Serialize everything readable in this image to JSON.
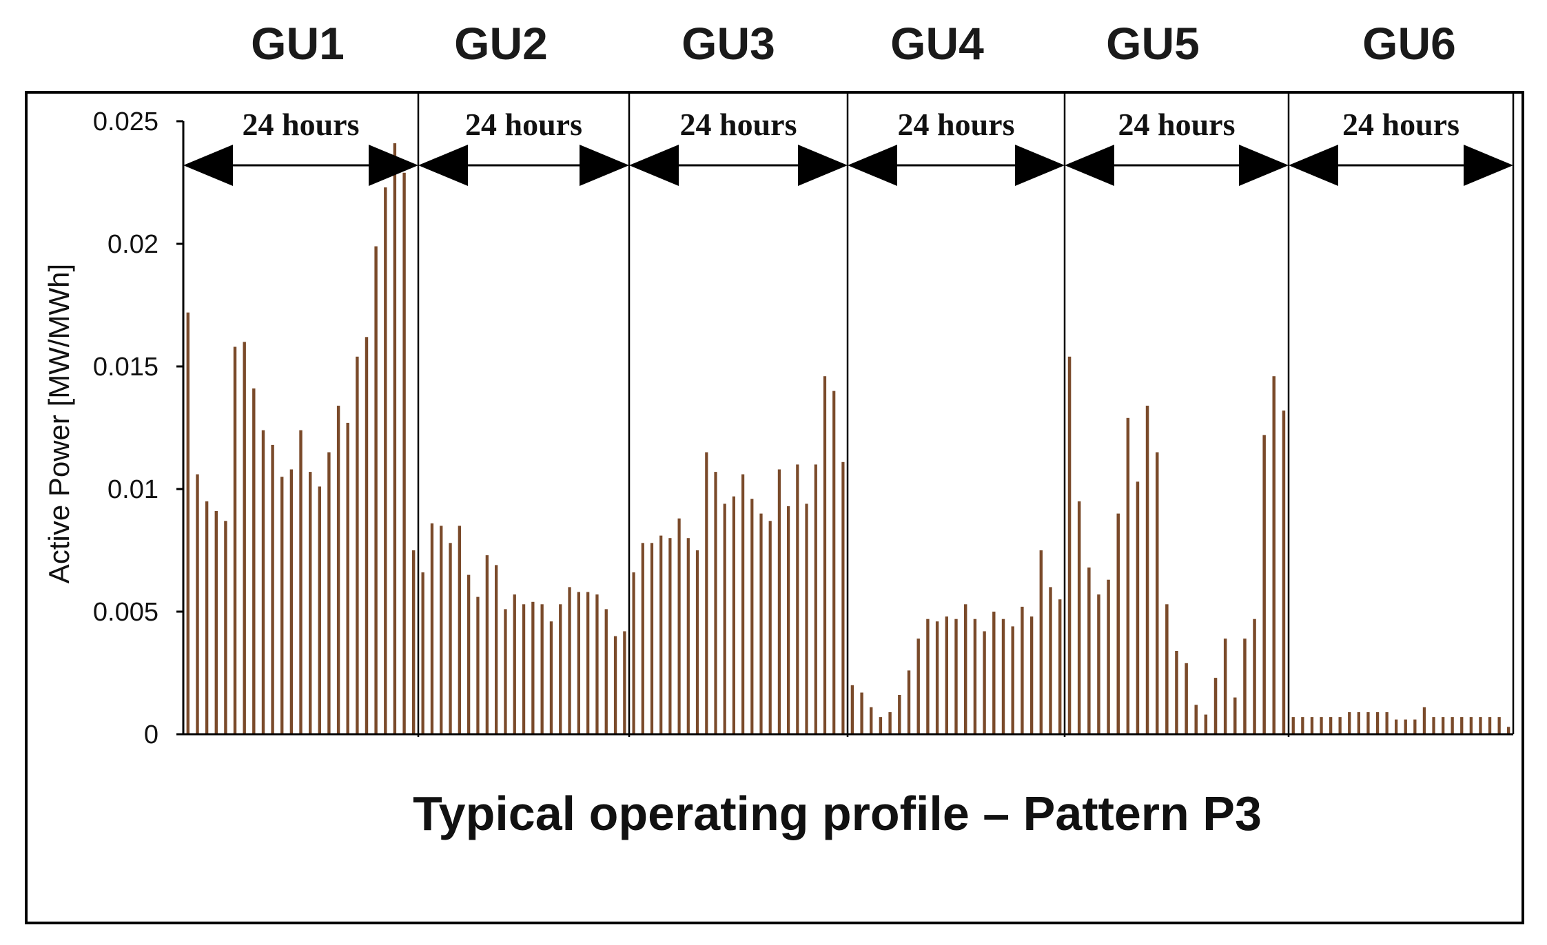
{
  "chart_data": {
    "type": "bar",
    "title": "",
    "xlabel": "Typical operating profile – Pattern P3",
    "ylabel": "Active Power  [MW/MWh]",
    "ylim": [
      0,
      0.025
    ],
    "yticks": [
      "0",
      "0.005",
      "0.01",
      "0.015",
      "0.02",
      "0.025"
    ],
    "grid": false,
    "legend": "none",
    "bar_color": "#7a4a2a",
    "segment_span_label": "24 hours",
    "segments": [
      {
        "name": "GU1",
        "span_label": "24 hours",
        "values": [
          0.0172,
          0.0106,
          0.0095,
          0.0091,
          0.0087,
          0.0158,
          0.016,
          0.0141,
          0.0124,
          0.0118,
          0.0105,
          0.0108,
          0.0124,
          0.0107,
          0.0101,
          0.0115,
          0.0134,
          0.0127,
          0.0154,
          0.0162,
          0.0199,
          0.0223,
          0.0241,
          0.0229,
          0.0075
        ]
      },
      {
        "name": "GU2",
        "span_label": "24 hours",
        "values": [
          0.0066,
          0.0086,
          0.0085,
          0.0078,
          0.0085,
          0.0065,
          0.0056,
          0.0073,
          0.0069,
          0.0051,
          0.0057,
          0.0053,
          0.0054,
          0.0053,
          0.0046,
          0.0053,
          0.006,
          0.0058,
          0.0058,
          0.0057,
          0.0051,
          0.004,
          0.0042
        ]
      },
      {
        "name": "GU3",
        "span_label": "24 hours",
        "values": [
          0.0066,
          0.0078,
          0.0078,
          0.0081,
          0.008,
          0.0088,
          0.008,
          0.0075,
          0.0115,
          0.0107,
          0.0094,
          0.0097,
          0.0106,
          0.0096,
          0.009,
          0.0087,
          0.0108,
          0.0093,
          0.011,
          0.0094,
          0.011,
          0.0146,
          0.014,
          0.0111
        ]
      },
      {
        "name": "GU4",
        "span_label": "24 hours",
        "values": [
          0.002,
          0.0017,
          0.0011,
          0.0007,
          0.0009,
          0.0016,
          0.0026,
          0.0039,
          0.0047,
          0.0046,
          0.0048,
          0.0047,
          0.0053,
          0.0047,
          0.0042,
          0.005,
          0.0047,
          0.0044,
          0.0052,
          0.0048,
          0.0075,
          0.006,
          0.0055
        ]
      },
      {
        "name": "GU5",
        "span_label": "24 hours",
        "values": [
          0.0154,
          0.0095,
          0.0068,
          0.0057,
          0.0063,
          0.009,
          0.0129,
          0.0103,
          0.0134,
          0.0115,
          0.0053,
          0.0034,
          0.0029,
          0.0012,
          0.0008,
          0.0023,
          0.0039,
          0.0015,
          0.0039,
          0.0047,
          0.0122,
          0.0146,
          0.0132
        ]
      },
      {
        "name": "GU6",
        "span_label": "24 hours",
        "values": [
          0.0007,
          0.0007,
          0.0007,
          0.0007,
          0.0007,
          0.0007,
          0.0009,
          0.0009,
          0.0009,
          0.0009,
          0.0009,
          0.0006,
          0.0006,
          0.0006,
          0.0011,
          0.0007,
          0.0007,
          0.0007,
          0.0007,
          0.0007,
          0.0007,
          0.0007,
          0.0007,
          0.0003
        ]
      }
    ]
  }
}
